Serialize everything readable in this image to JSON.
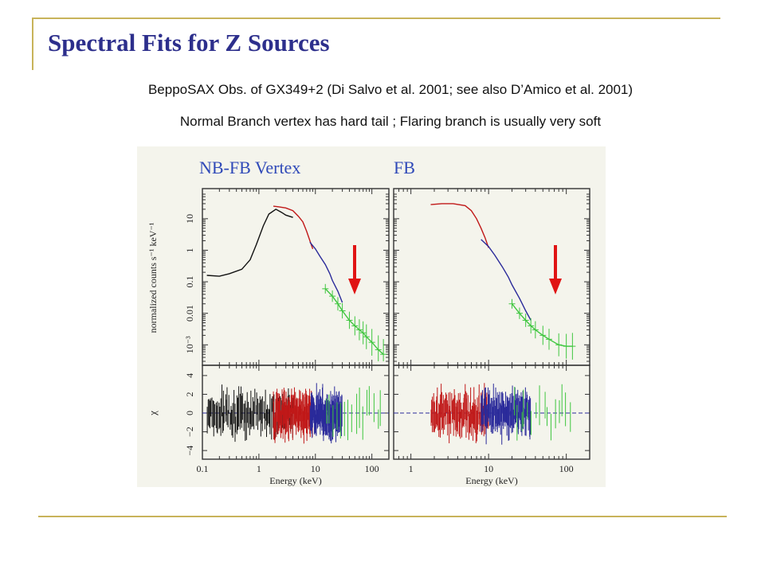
{
  "slide": {
    "title": "Spectral Fits for Z Sources",
    "line1": "BeppoSAX Obs. of GX349+2  (Di Salvo et al.  2001; see also D’Amico et al. 2001)",
    "line2": "Normal Branch vertex has hard tail ; Flaring branch is usually very soft"
  },
  "colors": {
    "title": "#2d2f8c",
    "rule": "#c8b35a",
    "panel_title": "#2f49b8",
    "arrow": "#e01414",
    "figure_bg": "#f4f4ec",
    "lecs": "#111111",
    "mecs": "#c01818",
    "hpgspc": "#2a2a9a",
    "pds": "#3fc63f"
  },
  "chart_data": [
    {
      "type": "line",
      "title": "NB-FB Vertex",
      "xlabel": "Energy (keV)",
      "ylabel": "normalized counts s⁻¹ keV⁻¹",
      "residual_label": "χ",
      "x_scale": "log",
      "y_scale": "log",
      "xlim": [
        0.1,
        200
      ],
      "ylim": [
        0.0003,
        60
      ],
      "x_ticks": [
        "0.1",
        "1",
        "10",
        "100"
      ],
      "y_ticks": [
        "10⁻³",
        "0.01",
        "0.1",
        "1",
        "10"
      ],
      "residual_ylim": [
        -4.5,
        4.5
      ],
      "residual_ticks": [
        "4",
        "2",
        "0",
        "−2",
        "−4"
      ],
      "arrow": true,
      "series": [
        {
          "color": "#111111",
          "x": [
            0.12,
            0.2,
            0.3,
            0.5,
            0.7,
            0.9,
            1.2,
            1.5,
            2,
            2.5,
            3,
            4
          ],
          "y": [
            0.16,
            0.15,
            0.18,
            0.25,
            0.5,
            1.5,
            6,
            14,
            20,
            16,
            13,
            11
          ]
        },
        {
          "color": "#c01818",
          "x": [
            1.8,
            2.2,
            3,
            4,
            5,
            6,
            7,
            8,
            9
          ],
          "y": [
            25,
            24,
            22,
            18,
            12,
            8,
            4,
            2,
            1.1
          ]
        },
        {
          "color": "#2a2a9a",
          "x": [
            8,
            10,
            12,
            15,
            18,
            20,
            25,
            30
          ],
          "y": [
            1.8,
            1.1,
            0.65,
            0.35,
            0.18,
            0.11,
            0.05,
            0.022
          ]
        },
        {
          "color": "#3fc63f",
          "x": [
            15,
            20,
            25,
            30,
            40,
            50,
            60,
            70,
            80,
            100,
            130,
            160
          ],
          "y": [
            0.06,
            0.035,
            0.02,
            0.012,
            0.006,
            0.004,
            0.003,
            0.0024,
            0.0018,
            0.0012,
            0.0007,
            0.0005
          ]
        }
      ]
    },
    {
      "type": "line",
      "title": "FB",
      "xlabel": "Energy (keV)",
      "x_scale": "log",
      "y_scale": "log",
      "xlim": [
        0.6,
        200
      ],
      "ylim": [
        0.0003,
        60
      ],
      "x_ticks": [
        "1",
        "10",
        "100"
      ],
      "residual_ylim": [
        -4.5,
        4.5
      ],
      "arrow": true,
      "series": [
        {
          "color": "#c01818",
          "x": [
            1.8,
            2.5,
            3.5,
            5,
            6,
            7,
            8,
            9,
            10
          ],
          "y": [
            28,
            30,
            30,
            26,
            18,
            10,
            5,
            2.5,
            1.2
          ]
        },
        {
          "color": "#2a2a9a",
          "x": [
            8,
            10,
            12,
            15,
            18,
            20,
            25,
            30,
            35
          ],
          "y": [
            2.2,
            1.3,
            0.7,
            0.3,
            0.14,
            0.08,
            0.03,
            0.012,
            0.006
          ]
        },
        {
          "color": "#3fc63f",
          "x": [
            20,
            25,
            30,
            35,
            40,
            50,
            60,
            80,
            100,
            120
          ],
          "y": [
            0.02,
            0.01,
            0.006,
            0.004,
            0.003,
            0.002,
            0.0015,
            0.001,
            0.0009,
            0.0009
          ]
        }
      ]
    }
  ]
}
